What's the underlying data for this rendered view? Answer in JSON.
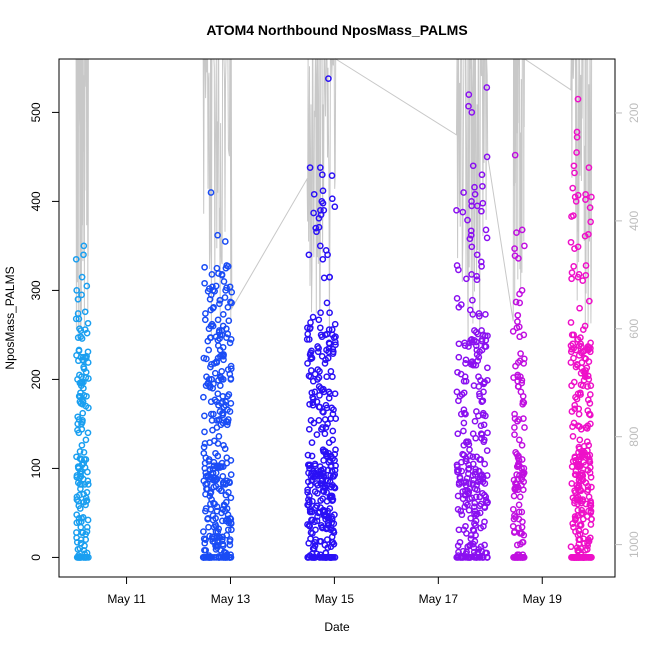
{
  "chart_data": {
    "type": "scatter",
    "title": "ATOM4 Northbound NposMass_PALMS",
    "xlabel": "Date",
    "ylabel": "NposMass_PALMS",
    "x_unit": "days since May 10 00:00",
    "xlim": [
      -0.3,
      10.4
    ],
    "ylim": [
      -22,
      560
    ],
    "x_ticks": [
      {
        "value": 1,
        "label": "May 11"
      },
      {
        "value": 3,
        "label": "May 13"
      },
      {
        "value": 5,
        "label": "May 15"
      },
      {
        "value": 7,
        "label": "May 17"
      },
      {
        "value": 9,
        "label": "May 19"
      }
    ],
    "y_ticks": [
      0,
      100,
      200,
      300,
      400,
      500
    ],
    "right_axis": {
      "description": "secondary axis (inverted) for grey altitude/pressure trace",
      "ticks": [
        200,
        400,
        600,
        800,
        1000
      ],
      "range_top": 100,
      "range_bottom": 1060,
      "color": "#bdbdbd"
    },
    "clusters": [
      {
        "x_center": 0.15,
        "x_spread": 0.24,
        "color": "#1a9ff0",
        "n": 160,
        "max_y": 350,
        "top_values": [
          350,
          340,
          335,
          315,
          305,
          300,
          295,
          290,
          252,
          248
        ]
      },
      {
        "x_center": 2.75,
        "x_spread": 0.55,
        "color": "#1a4cf5",
        "n": 330,
        "max_y": 410,
        "top_values": [
          410,
          362,
          355,
          325,
          325,
          305,
          300,
          295,
          290,
          285
        ]
      },
      {
        "x_center": 4.75,
        "x_spread": 0.55,
        "color": "#2a10f5",
        "n": 340,
        "max_y": 538,
        "top_values": [
          538,
          438,
          438,
          430,
          400,
          385,
          370,
          350,
          340,
          335
        ]
      },
      {
        "x_center": 7.65,
        "x_spread": 0.6,
        "color": "#8a10f0",
        "n": 300,
        "max_y": 528,
        "top_values": [
          528,
          520,
          507,
          500,
          450,
          440,
          430,
          410,
          400,
          395
        ]
      },
      {
        "x_center": 8.55,
        "x_spread": 0.22,
        "color": "#c010e0",
        "n": 130,
        "max_y": 452,
        "top_values": [
          452,
          368,
          365,
          336,
          296,
          286,
          272,
          265
        ]
      },
      {
        "x_center": 9.75,
        "x_spread": 0.4,
        "color": "#ee10c8",
        "n": 300,
        "max_y": 515,
        "top_values": [
          515,
          478,
          472,
          455,
          440,
          438,
          432,
          415,
          405,
          400
        ]
      }
    ]
  }
}
